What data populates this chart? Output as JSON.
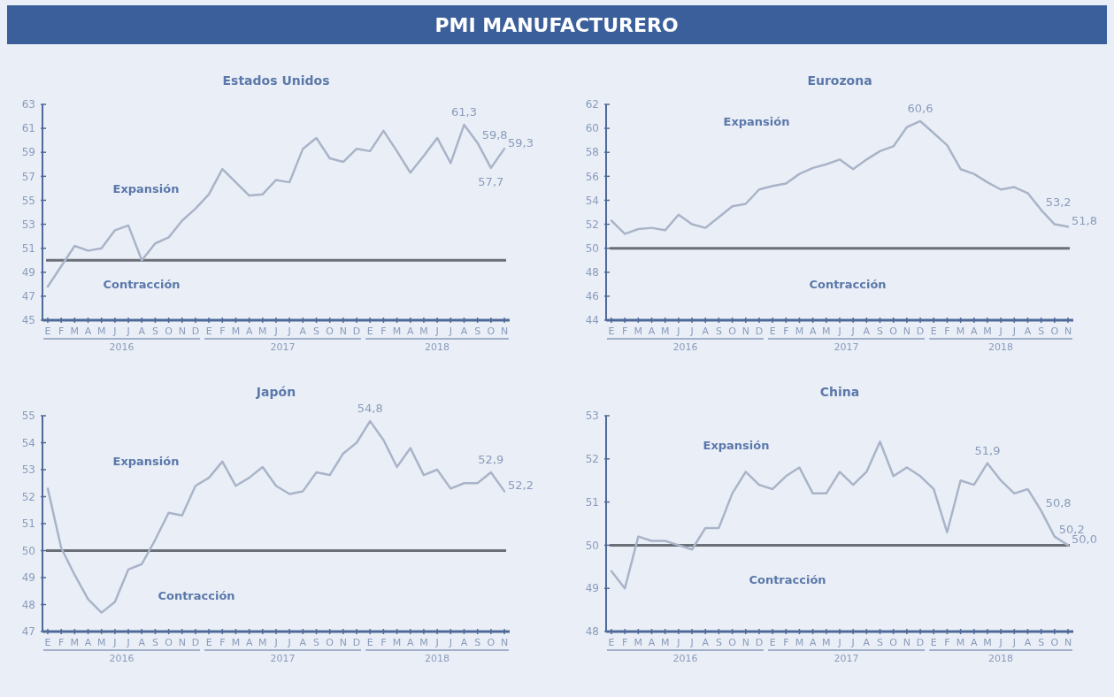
{
  "chart_data": [
    {
      "type": "other",
      "title": "PMI MANUFACTURERO"
    },
    {
      "type": "line",
      "title": "Estados Unidos",
      "categories": [
        "E",
        "F",
        "M",
        "A",
        "M",
        "J",
        "J",
        "A",
        "S",
        "O",
        "N",
        "D",
        "E",
        "F",
        "M",
        "A",
        "M",
        "J",
        "J",
        "A",
        "S",
        "O",
        "N",
        "D",
        "E",
        "F",
        "M",
        "A",
        "M",
        "J",
        "J",
        "A",
        "S",
        "O",
        "N"
      ],
      "series": [
        {
          "color": "#a9b4c8",
          "values": [
            47.8,
            49.5,
            51.2,
            50.8,
            51.0,
            52.5,
            52.9,
            50.0,
            51.4,
            51.9,
            53.3,
            54.3,
            55.5,
            57.6,
            56.5,
            55.4,
            55.5,
            56.7,
            56.5,
            59.3,
            60.2,
            58.5,
            58.2,
            59.3,
            59.1,
            60.8,
            59.1,
            57.3,
            58.7,
            60.2,
            58.1,
            61.3,
            59.8,
            57.7,
            59.3
          ],
          "value_labels": [
            null,
            null,
            null,
            null,
            null,
            null,
            null,
            null,
            null,
            null,
            null,
            null,
            null,
            null,
            null,
            null,
            null,
            null,
            null,
            null,
            null,
            null,
            null,
            null,
            null,
            null,
            null,
            null,
            null,
            null,
            null,
            "61,3",
            "59,8",
            "57,7",
            "59,3"
          ]
        }
      ],
      "ylim": [
        45,
        63
      ],
      "yticks": [
        45,
        47,
        49,
        51,
        53,
        55,
        57,
        59,
        61,
        63
      ],
      "grid": false,
      "marker": "none",
      "line_style": "solid",
      "ref_lines": [
        {
          "axis": "y",
          "value": 50,
          "color": "#6b6f78"
        }
      ],
      "annotations": [
        "Expansión",
        "Contracción",
        "2016",
        "2017",
        "2018"
      ]
    },
    {
      "type": "line",
      "title": "Eurozona",
      "categories": [
        "E",
        "F",
        "M",
        "A",
        "M",
        "J",
        "J",
        "A",
        "S",
        "O",
        "N",
        "D",
        "E",
        "F",
        "M",
        "A",
        "M",
        "J",
        "J",
        "A",
        "S",
        "O",
        "N",
        "D",
        "E",
        "F",
        "M",
        "A",
        "M",
        "J",
        "J",
        "A",
        "S",
        "O",
        "N"
      ],
      "series": [
        {
          "color": "#a9b4c8",
          "values": [
            52.3,
            51.2,
            51.6,
            51.7,
            51.5,
            52.8,
            52.0,
            51.7,
            52.6,
            53.5,
            53.7,
            54.9,
            55.2,
            55.4,
            56.2,
            56.7,
            57.0,
            57.4,
            56.6,
            57.4,
            58.1,
            58.5,
            60.1,
            60.6,
            59.6,
            58.6,
            56.6,
            56.2,
            55.5,
            54.9,
            55.1,
            54.6,
            53.2,
            52.0,
            51.8
          ],
          "value_labels": [
            null,
            null,
            null,
            null,
            null,
            null,
            null,
            null,
            null,
            null,
            null,
            null,
            null,
            null,
            null,
            null,
            null,
            null,
            null,
            null,
            null,
            null,
            null,
            "60,6",
            null,
            null,
            null,
            null,
            null,
            null,
            null,
            null,
            "53,2",
            null,
            "51,8"
          ]
        }
      ],
      "ylim": [
        44,
        62
      ],
      "yticks": [
        44,
        46,
        48,
        50,
        52,
        54,
        56,
        58,
        60,
        62
      ],
      "grid": false,
      "marker": "none",
      "line_style": "solid",
      "ref_lines": [
        {
          "axis": "y",
          "value": 50,
          "color": "#6b6f78"
        }
      ],
      "annotations": [
        "Expansión",
        "Contracción",
        "2016",
        "2017",
        "2018"
      ]
    },
    {
      "type": "line",
      "title": "Japón",
      "categories": [
        "E",
        "F",
        "M",
        "A",
        "M",
        "J",
        "J",
        "A",
        "S",
        "O",
        "N",
        "D",
        "E",
        "F",
        "M",
        "A",
        "M",
        "J",
        "J",
        "A",
        "S",
        "O",
        "N",
        "D",
        "E",
        "F",
        "M",
        "A",
        "M",
        "J",
        "J",
        "A",
        "S",
        "O",
        "N"
      ],
      "series": [
        {
          "color": "#a9b4c8",
          "values": [
            52.3,
            50.1,
            49.1,
            48.2,
            47.7,
            48.1,
            49.3,
            49.5,
            50.4,
            51.4,
            51.3,
            52.4,
            52.7,
            53.3,
            52.4,
            52.7,
            53.1,
            52.4,
            52.1,
            52.2,
            52.9,
            52.8,
            53.6,
            54.0,
            54.8,
            54.1,
            53.1,
            53.8,
            52.8,
            53.0,
            52.3,
            52.5,
            52.5,
            52.9,
            52.2
          ],
          "value_labels": [
            null,
            null,
            null,
            null,
            null,
            null,
            null,
            null,
            null,
            null,
            null,
            null,
            null,
            null,
            null,
            null,
            null,
            null,
            null,
            null,
            null,
            null,
            null,
            null,
            "54,8",
            null,
            null,
            null,
            null,
            null,
            null,
            null,
            null,
            "52,9",
            "52,2"
          ]
        }
      ],
      "ylim": [
        47,
        55
      ],
      "yticks": [
        47,
        48,
        49,
        50,
        51,
        52,
        53,
        54,
        55
      ],
      "grid": false,
      "marker": "none",
      "line_style": "solid",
      "ref_lines": [
        {
          "axis": "y",
          "value": 50,
          "color": "#6b6f78"
        }
      ],
      "annotations": [
        "Expansión",
        "Contracción",
        "2016",
        "2017",
        "2018"
      ]
    },
    {
      "type": "line",
      "title": "China",
      "categories": [
        "E",
        "F",
        "M",
        "A",
        "M",
        "J",
        "J",
        "A",
        "S",
        "O",
        "N",
        "D",
        "E",
        "F",
        "M",
        "A",
        "M",
        "J",
        "J",
        "A",
        "S",
        "O",
        "N",
        "D",
        "E",
        "F",
        "M",
        "A",
        "M",
        "J",
        "J",
        "A",
        "S",
        "O",
        "N"
      ],
      "series": [
        {
          "color": "#a9b4c8",
          "values": [
            49.4,
            49.0,
            50.2,
            50.1,
            50.1,
            50.0,
            49.9,
            50.4,
            50.4,
            51.2,
            51.7,
            51.4,
            51.3,
            51.6,
            51.8,
            51.2,
            51.2,
            51.7,
            51.4,
            51.7,
            52.4,
            51.6,
            51.8,
            51.6,
            51.3,
            50.3,
            51.5,
            51.4,
            51.9,
            51.5,
            51.2,
            51.3,
            50.8,
            50.2,
            50.0
          ],
          "value_labels": [
            null,
            null,
            null,
            null,
            null,
            null,
            null,
            null,
            null,
            null,
            null,
            null,
            null,
            null,
            null,
            null,
            null,
            null,
            null,
            null,
            null,
            null,
            null,
            null,
            null,
            null,
            null,
            null,
            "51,9",
            null,
            null,
            null,
            "50,8",
            "50,2",
            "50,0"
          ]
        }
      ],
      "ylim": [
        48,
        53
      ],
      "yticks": [
        48,
        49,
        50,
        51,
        52,
        53
      ],
      "grid": false,
      "marker": "none",
      "line_style": "solid",
      "ref_lines": [
        {
          "axis": "y",
          "value": 50,
          "color": "#6b6f78"
        }
      ],
      "annotations": [
        "Expansión",
        "Contracción",
        "2016",
        "2017",
        "2018"
      ]
    }
  ]
}
